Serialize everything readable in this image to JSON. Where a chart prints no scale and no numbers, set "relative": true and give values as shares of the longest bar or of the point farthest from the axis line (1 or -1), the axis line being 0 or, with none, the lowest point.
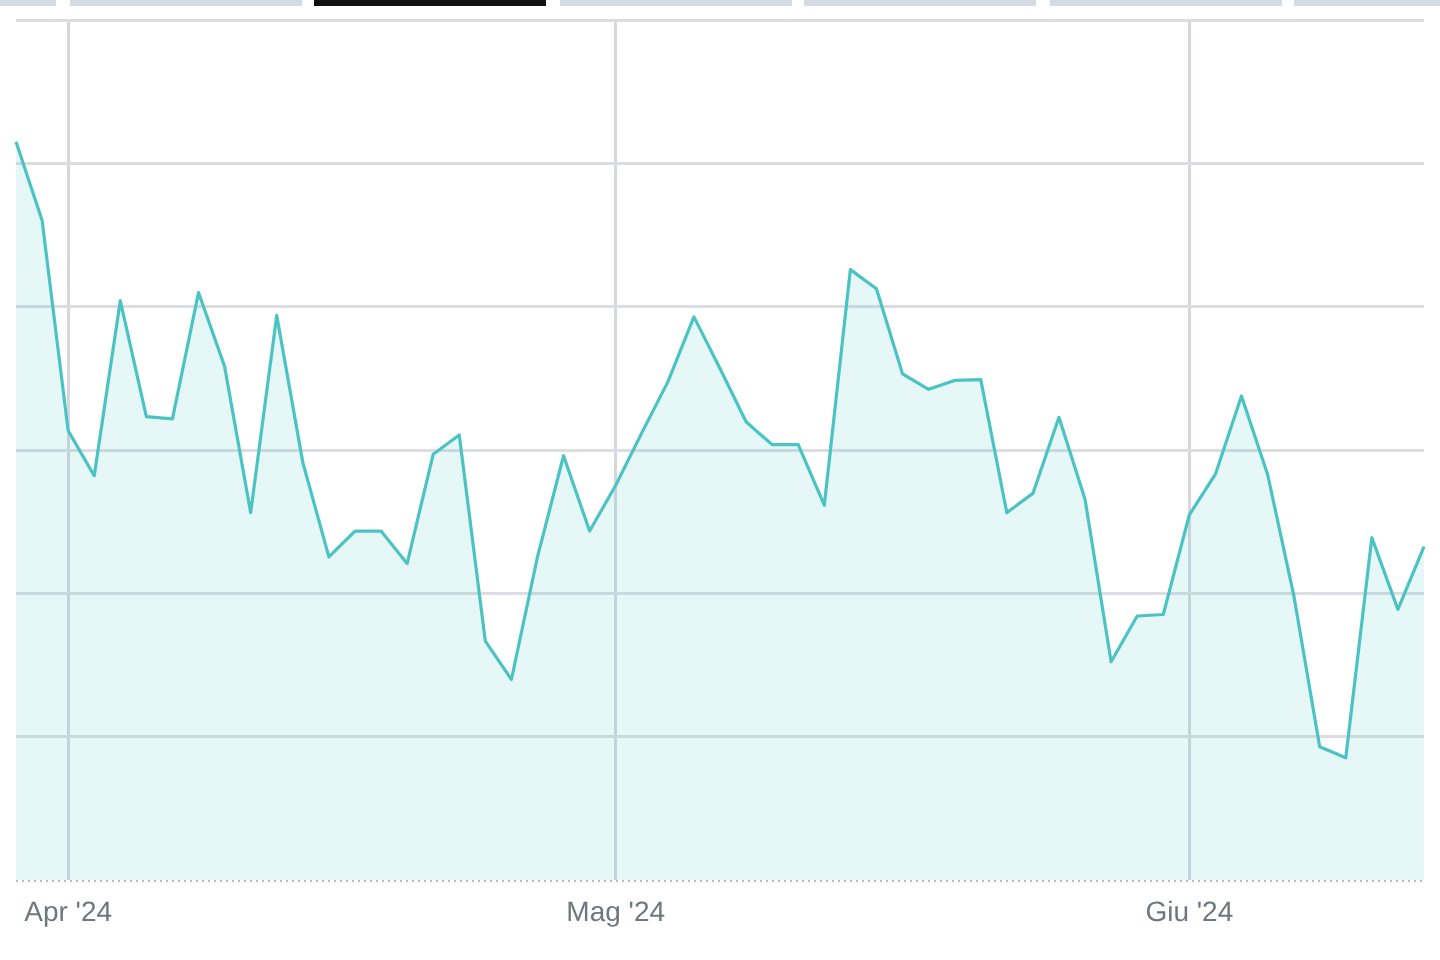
{
  "chart_data": {
    "type": "area",
    "relative": true,
    "categories": [
      null,
      null,
      "Apr '24",
      null,
      null,
      null,
      null,
      null,
      null,
      null,
      null,
      null,
      null,
      null,
      null,
      null,
      null,
      null,
      null,
      null,
      null,
      null,
      null,
      "Mag '24",
      null,
      null,
      null,
      null,
      null,
      null,
      null,
      null,
      null,
      null,
      null,
      null,
      null,
      null,
      null,
      null,
      null,
      null,
      null,
      null,
      null,
      "Giu '24",
      null,
      null,
      null,
      null,
      null,
      null,
      null,
      null,
      null
    ],
    "series": [
      {
        "color": "#4cc3c3",
        "values": [
          1,
          0.894,
          0.609,
          0.548,
          0.785,
          0.628,
          0.625,
          0.796,
          0.696,
          0.498,
          0.765,
          0.566,
          0.438,
          0.473,
          0.473,
          0.429,
          0.577,
          0.603,
          0.324,
          0.272,
          0.438,
          0.575,
          0.473,
          0.535,
          0.606,
          0.675,
          0.763,
          0.693,
          0.621,
          0.59,
          0.59,
          0.508,
          0.827,
          0.801,
          0.686,
          0.665,
          0.677,
          0.678,
          0.498,
          0.524,
          0.627,
          0.516,
          0.296,
          0.358,
          0.36,
          0.495,
          0.55,
          0.656,
          0.55,
          0.387,
          0.181,
          0.166,
          0.464,
          0.367,
          0.452
        ]
      }
    ],
    "grid": true,
    "marker": "none"
  }
}
